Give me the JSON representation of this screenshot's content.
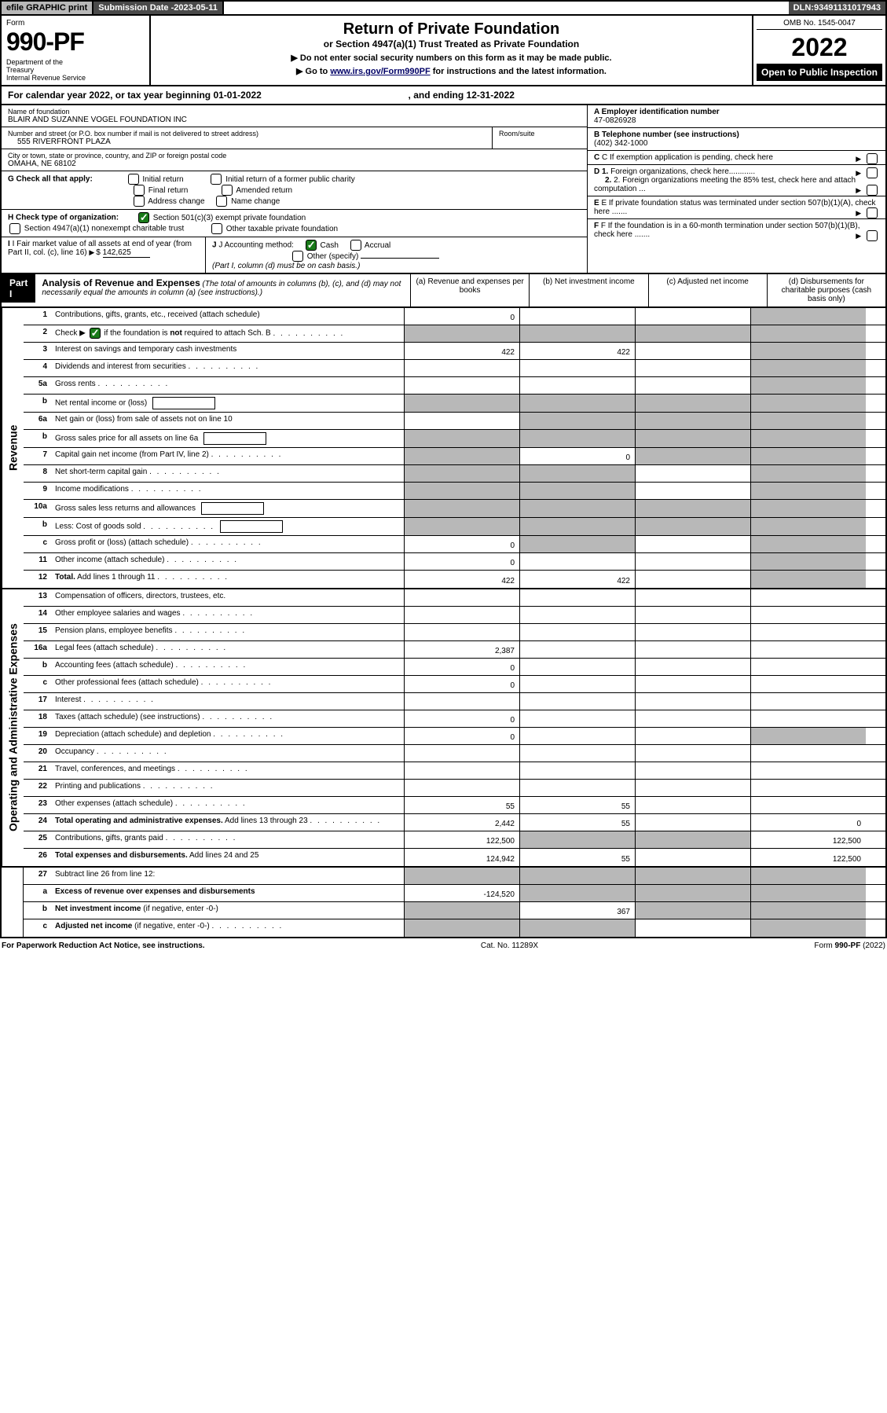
{
  "topbar": {
    "efile": "efile GRAPHIC print",
    "subdate_label": "Submission Date - ",
    "subdate": "2023-05-11",
    "dln_label": "DLN: ",
    "dln": "93491131017943"
  },
  "header": {
    "form_label": "Form",
    "form_number": "990-PF",
    "dept": "Department of the Treasury\nInternal Revenue Service",
    "title": "Return of Private Foundation",
    "subtitle": "or Section 4947(a)(1) Trust Treated as Private Foundation",
    "instr1": "▶ Do not enter social security numbers on this form as it may be made public.",
    "instr2_pre": "▶ Go to ",
    "instr2_link": "www.irs.gov/Form990PF",
    "instr2_post": " for instructions and the latest information.",
    "omb": "OMB No. 1545-0047",
    "year": "2022",
    "openpub": "Open to Public Inspection"
  },
  "calendar": {
    "text_pre": "For calendar year 2022, or tax year beginning ",
    "begin": "01-01-2022",
    "text_mid": " , and ending ",
    "end": "12-31-2022"
  },
  "info": {
    "name_label": "Name of foundation",
    "name": "BLAIR AND SUZANNE VOGEL FOUNDATION INC",
    "addr_label": "Number and street (or P.O. box number if mail is not delivered to street address)",
    "addr": "555 RIVERFRONT PLAZA",
    "room_label": "Room/suite",
    "city_label": "City or town, state or province, country, and ZIP or foreign postal code",
    "city": "OMAHA, NE  68102",
    "A_label": "A Employer identification number",
    "A_val": "47-0826928",
    "B_label": "B Telephone number (see instructions)",
    "B_val": "(402) 342-1000",
    "C_label": "C If exemption application is pending, check here",
    "D1_label": "D 1. Foreign organizations, check here",
    "D2_label": "2. Foreign organizations meeting the 85% test, check here and attach computation ...",
    "E_label": "E  If private foundation status was terminated under section 507(b)(1)(A), check here .......",
    "F_label": "F  If the foundation is in a 60-month termination under section 507(b)(1)(B), check here .......",
    "G_label": "G Check all that apply:",
    "G_opts": [
      "Initial return",
      "Initial return of a former public charity",
      "Final return",
      "Amended return",
      "Address change",
      "Name change"
    ],
    "H_label": "H Check type of organization:",
    "H_opt1": "Section 501(c)(3) exempt private foundation",
    "H_opt2": "Section 4947(a)(1) nonexempt charitable trust",
    "H_opt3": "Other taxable private foundation",
    "I_label": "I Fair market value of all assets at end of year (from Part II, col. (c), line 16)",
    "I_val": "142,625",
    "J_label": "J Accounting method:",
    "J_cash": "Cash",
    "J_accrual": "Accrual",
    "J_other": "Other (specify)",
    "J_note": "(Part I, column (d) must be on cash basis.)"
  },
  "part1": {
    "label": "Part I",
    "title": "Analysis of Revenue and Expenses",
    "note": "(The total of amounts in columns (b), (c), and (d) may not necessarily equal the amounts in column (a) (see instructions).)",
    "col_a": "(a)   Revenue and expenses per books",
    "col_b": "(b)   Net investment income",
    "col_c": "(c)   Adjusted net income",
    "col_d": "(d)  Disbursements for charitable purposes (cash basis only)"
  },
  "sections": {
    "revenue": "Revenue",
    "expenses": "Operating and Administrative Expenses"
  },
  "rows": [
    {
      "n": "1",
      "label": "Contributions, gifts, grants, etc., received (attach schedule)",
      "a": "0",
      "b": "",
      "c": "",
      "d": "",
      "shade": [
        "d"
      ]
    },
    {
      "n": "2",
      "label": "Check ▶ [✓] if the foundation is <b>not</b> required to attach Sch. B",
      "dots": true,
      "a": "",
      "b": "",
      "c": "",
      "d": "",
      "shade": [
        "a",
        "b",
        "c",
        "d"
      ],
      "check": true
    },
    {
      "n": "3",
      "label": "Interest on savings and temporary cash investments",
      "a": "422",
      "b": "422",
      "c": "",
      "d": "",
      "shade": [
        "d"
      ]
    },
    {
      "n": "4",
      "label": "Dividends and interest from securities",
      "dots": true,
      "a": "",
      "b": "",
      "c": "",
      "d": "",
      "shade": [
        "d"
      ]
    },
    {
      "n": "5a",
      "label": "Gross rents",
      "dots": true,
      "a": "",
      "b": "",
      "c": "",
      "d": "",
      "shade": [
        "d"
      ]
    },
    {
      "n": "b",
      "label": "Net rental income or (loss)",
      "box": true,
      "a": "",
      "b": "",
      "c": "",
      "d": "",
      "shade": [
        "a",
        "b",
        "c",
        "d"
      ]
    },
    {
      "n": "6a",
      "label": "Net gain or (loss) from sale of assets not on line 10",
      "a": "",
      "b": "",
      "c": "",
      "d": "",
      "shade": [
        "b",
        "c",
        "d"
      ]
    },
    {
      "n": "b",
      "label": "Gross sales price for all assets on line 6a",
      "box": true,
      "a": "",
      "b": "",
      "c": "",
      "d": "",
      "shade": [
        "a",
        "b",
        "c",
        "d"
      ]
    },
    {
      "n": "7",
      "label": "Capital gain net income (from Part IV, line 2)",
      "dots": true,
      "a": "",
      "b": "0",
      "c": "",
      "d": "",
      "shade": [
        "a",
        "c",
        "d"
      ]
    },
    {
      "n": "8",
      "label": "Net short-term capital gain",
      "dots": true,
      "a": "",
      "b": "",
      "c": "",
      "d": "",
      "shade": [
        "a",
        "b",
        "d"
      ]
    },
    {
      "n": "9",
      "label": "Income modifications",
      "dots": true,
      "a": "",
      "b": "",
      "c": "",
      "d": "",
      "shade": [
        "a",
        "b",
        "d"
      ]
    },
    {
      "n": "10a",
      "label": "Gross sales less returns and allowances",
      "box": true,
      "a": "",
      "b": "",
      "c": "",
      "d": "",
      "shade": [
        "a",
        "b",
        "c",
        "d"
      ]
    },
    {
      "n": "b",
      "label": "Less: Cost of goods sold",
      "dots": true,
      "box": true,
      "a": "",
      "b": "",
      "c": "",
      "d": "",
      "shade": [
        "a",
        "b",
        "c",
        "d"
      ]
    },
    {
      "n": "c",
      "label": "Gross profit or (loss) (attach schedule)",
      "dots": true,
      "a": "0",
      "b": "",
      "c": "",
      "d": "",
      "shade": [
        "b",
        "d"
      ]
    },
    {
      "n": "11",
      "label": "Other income (attach schedule)",
      "dots": true,
      "a": "0",
      "b": "",
      "c": "",
      "d": "",
      "shade": [
        "d"
      ]
    },
    {
      "n": "12",
      "label": "<b>Total.</b> Add lines 1 through 11",
      "dots": true,
      "a": "422",
      "b": "422",
      "c": "",
      "d": "",
      "shade": [
        "d"
      ]
    }
  ],
  "exp_rows": [
    {
      "n": "13",
      "label": "Compensation of officers, directors, trustees, etc.",
      "a": "",
      "b": "",
      "c": "",
      "d": ""
    },
    {
      "n": "14",
      "label": "Other employee salaries and wages",
      "dots": true,
      "a": "",
      "b": "",
      "c": "",
      "d": ""
    },
    {
      "n": "15",
      "label": "Pension plans, employee benefits",
      "dots": true,
      "a": "",
      "b": "",
      "c": "",
      "d": ""
    },
    {
      "n": "16a",
      "label": "Legal fees (attach schedule)",
      "dots": true,
      "a": "2,387",
      "b": "",
      "c": "",
      "d": ""
    },
    {
      "n": "b",
      "label": "Accounting fees (attach schedule)",
      "dots": true,
      "a": "0",
      "b": "",
      "c": "",
      "d": ""
    },
    {
      "n": "c",
      "label": "Other professional fees (attach schedule)",
      "dots": true,
      "a": "0",
      "b": "",
      "c": "",
      "d": ""
    },
    {
      "n": "17",
      "label": "Interest",
      "dots": true,
      "a": "",
      "b": "",
      "c": "",
      "d": ""
    },
    {
      "n": "18",
      "label": "Taxes (attach schedule) (see instructions)",
      "dots": true,
      "a": "0",
      "b": "",
      "c": "",
      "d": ""
    },
    {
      "n": "19",
      "label": "Depreciation (attach schedule) and depletion",
      "dots": true,
      "a": "0",
      "b": "",
      "c": "",
      "d": "",
      "shade": [
        "d"
      ]
    },
    {
      "n": "20",
      "label": "Occupancy",
      "dots": true,
      "a": "",
      "b": "",
      "c": "",
      "d": ""
    },
    {
      "n": "21",
      "label": "Travel, conferences, and meetings",
      "dots": true,
      "a": "",
      "b": "",
      "c": "",
      "d": ""
    },
    {
      "n": "22",
      "label": "Printing and publications",
      "dots": true,
      "a": "",
      "b": "",
      "c": "",
      "d": ""
    },
    {
      "n": "23",
      "label": "Other expenses (attach schedule)",
      "dots": true,
      "a": "55",
      "b": "55",
      "c": "",
      "d": ""
    },
    {
      "n": "24",
      "label": "<b>Total operating and administrative expenses.</b> Add lines 13 through 23",
      "dots": true,
      "a": "2,442",
      "b": "55",
      "c": "",
      "d": "0"
    },
    {
      "n": "25",
      "label": "Contributions, gifts, grants paid",
      "dots": true,
      "a": "122,500",
      "b": "",
      "c": "",
      "d": "122,500",
      "shade": [
        "b",
        "c"
      ]
    },
    {
      "n": "26",
      "label": "<b>Total expenses and disbursements.</b> Add lines 24 and 25",
      "a": "124,942",
      "b": "55",
      "c": "",
      "d": "122,500"
    }
  ],
  "bottom_rows": [
    {
      "n": "27",
      "label": "Subtract line 26 from line 12:",
      "a": "",
      "b": "",
      "c": "",
      "d": "",
      "shade": [
        "a",
        "b",
        "c",
        "d"
      ]
    },
    {
      "n": "a",
      "label": "<b>Excess of revenue over expenses and disbursements</b>",
      "a": "-124,520",
      "b": "",
      "c": "",
      "d": "",
      "shade": [
        "b",
        "c",
        "d"
      ]
    },
    {
      "n": "b",
      "label": "<b>Net investment income</b> (if negative, enter -0-)",
      "a": "",
      "b": "367",
      "c": "",
      "d": "",
      "shade": [
        "a",
        "c",
        "d"
      ]
    },
    {
      "n": "c",
      "label": "<b>Adjusted net income</b> (if negative, enter -0-)",
      "dots": true,
      "a": "",
      "b": "",
      "c": "",
      "d": "",
      "shade": [
        "a",
        "b",
        "d"
      ]
    }
  ],
  "footer": {
    "left": "For Paperwork Reduction Act Notice, see instructions.",
    "mid": "Cat. No. 11289X",
    "right": "Form 990-PF (2022)"
  },
  "colors": {
    "shade": "#b8b8b8",
    "dark": "#4a4a4a",
    "link": "#000066",
    "check_green": "#1a7a1a"
  }
}
